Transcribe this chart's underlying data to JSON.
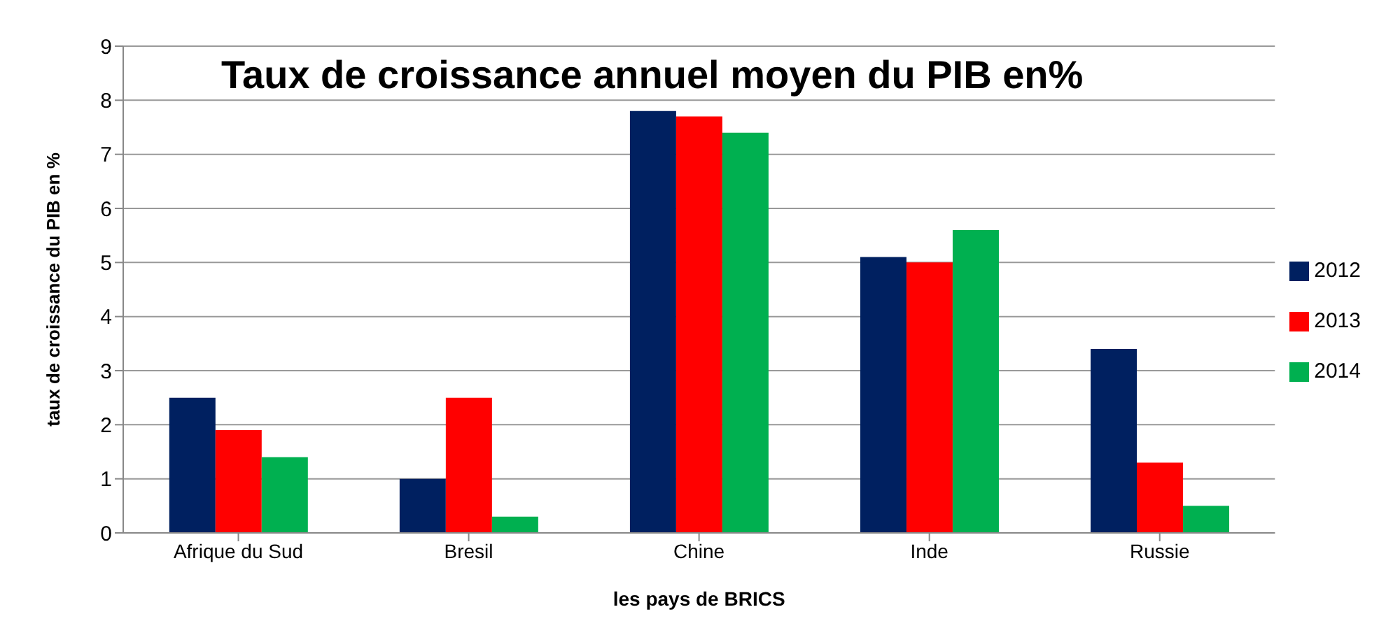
{
  "chart_data": {
    "type": "bar",
    "title": "Taux de croissance annuel moyen du PIB en%",
    "xlabel": "les pays de BRICS",
    "ylabel": "taux de croissance du PIB en %",
    "categories": [
      "Afrique du Sud",
      "Bresil",
      "Chine",
      "Inde",
      "Russie"
    ],
    "series": [
      {
        "name": "2012",
        "color": "#002060",
        "values": [
          2.5,
          1.0,
          7.8,
          5.1,
          3.4
        ]
      },
      {
        "name": "2013",
        "color": "#ff0000",
        "values": [
          1.9,
          2.5,
          7.7,
          5.0,
          1.3
        ]
      },
      {
        "name": "2014",
        "color": "#00b050",
        "values": [
          1.4,
          0.3,
          7.4,
          5.6,
          0.5
        ]
      }
    ],
    "ylim": [
      0,
      9
    ],
    "yticks": [
      0,
      1,
      2,
      3,
      4,
      5,
      6,
      7,
      8,
      9
    ],
    "grid": "y",
    "legend": "right"
  }
}
